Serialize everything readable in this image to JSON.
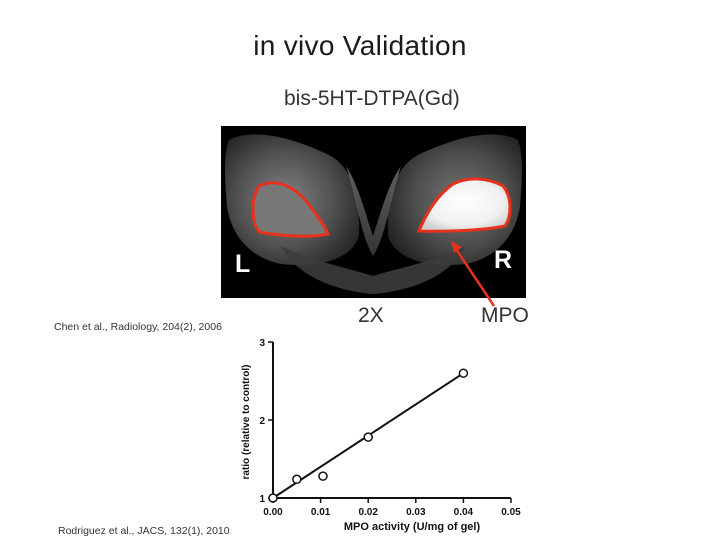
{
  "slide": {
    "title": "in vivo Validation",
    "subtitle": "bis-5HT-DTPA(Gd)"
  },
  "mri_image": {
    "left_label": "L",
    "right_label": "R",
    "outline_color": "#e8311c",
    "arrow_color": "#e8311c"
  },
  "annotations": {
    "ratio": "2X",
    "target": "MPO"
  },
  "citations": {
    "top": "Chen et al., Radiology, 204(2), 2006",
    "bottom": "Rodriguez et al., JACS, 132(1), 2010"
  },
  "chart_data": {
    "type": "scatter",
    "title": "",
    "xlabel": "MPO activity (U/mg of gel)",
    "ylabel": "ratio (relative to control)",
    "xlim": [
      0,
      0.05
    ],
    "ylim": [
      1,
      3
    ],
    "x_ticks": [
      "0.00",
      "0.01",
      "0.02",
      "0.03",
      "0.04",
      "0.05"
    ],
    "y_ticks": [
      "1",
      "2",
      "3"
    ],
    "grid": false,
    "points": [
      {
        "x": 0.0,
        "y": 1.0
      },
      {
        "x": 0.005,
        "y": 1.24
      },
      {
        "x": 0.0105,
        "y": 1.28
      },
      {
        "x": 0.02,
        "y": 1.78
      },
      {
        "x": 0.04,
        "y": 2.6
      }
    ],
    "fit_line": {
      "x": [
        0.0,
        0.04
      ],
      "y": [
        1.0,
        2.6
      ]
    }
  }
}
